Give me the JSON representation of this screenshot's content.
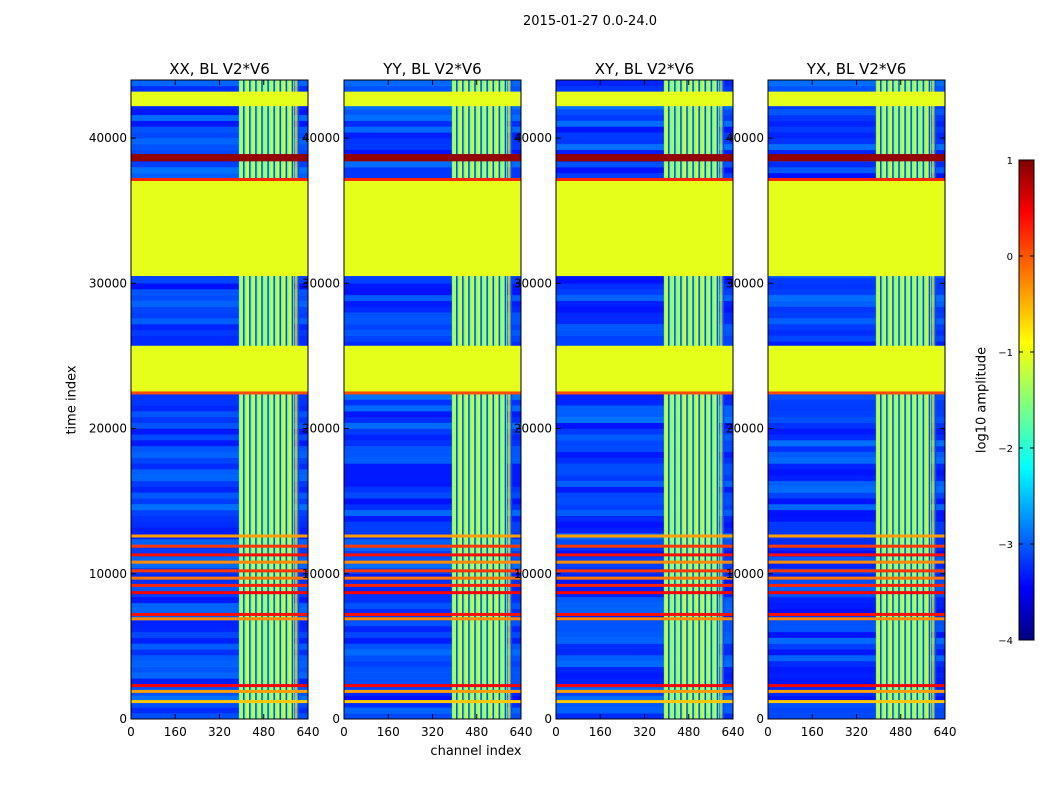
{
  "figure": {
    "suptitle": "2015-01-27 0.0-24.0",
    "ylabel": "time index",
    "xlabel": "channel index",
    "colorbar_label": "log10 amplitude"
  },
  "chart_data": {
    "type": "heatmap",
    "colormap": "jet",
    "clim": [
      -4,
      1
    ],
    "colorbar_ticks": [
      "1",
      "0",
      "−1",
      "−2",
      "−3",
      "−4"
    ],
    "colorbar_tick_values": [
      1,
      0,
      -1,
      -2,
      -3,
      -4
    ],
    "panels": [
      {
        "title": "XX, BL V2*V6"
      },
      {
        "title": "YY, BL V2*V6"
      },
      {
        "title": "XY, BL V2*V6"
      },
      {
        "title": "YX, BL V2*V6"
      }
    ],
    "x_range": [
      0,
      640
    ],
    "x_ticks": [
      0,
      160,
      320,
      480,
      640
    ],
    "y_range": [
      0,
      44000
    ],
    "y_ticks": [
      0,
      10000,
      20000,
      30000,
      40000
    ],
    "flagged_time_blocks": [
      {
        "t0": 42200,
        "t1": 43200,
        "log_amp": -1.0
      },
      {
        "t0": 30500,
        "t1": 37200,
        "log_amp": -1.0
      },
      {
        "t0": 22500,
        "t1": 25700,
        "log_amp": -1.0
      },
      {
        "t0": 38400,
        "t1": 38900,
        "log_amp": 0.9
      }
    ],
    "rfi_lines_time": [
      {
        "t": 37150,
        "log_amp": 0.2
      },
      {
        "t": 22450,
        "log_amp": 0.0
      },
      {
        "t": 12600,
        "log_amp": -0.4
      },
      {
        "t": 11900,
        "log_amp": 0.1
      },
      {
        "t": 11300,
        "log_amp": 0.3
      },
      {
        "t": 10800,
        "log_amp": -0.3
      },
      {
        "t": 10200,
        "log_amp": 0.1
      },
      {
        "t": 9700,
        "log_amp": -0.2
      },
      {
        "t": 9200,
        "log_amp": 0.2
      },
      {
        "t": 8700,
        "log_amp": 0.4
      },
      {
        "t": 7200,
        "log_amp": 0.3
      },
      {
        "t": 6900,
        "log_amp": -0.3
      },
      {
        "t": 2300,
        "log_amp": 0.4
      },
      {
        "t": 1900,
        "log_amp": -0.4
      },
      {
        "t": 1200,
        "log_amp": -0.6
      }
    ],
    "rfi_channel_band": {
      "c0": 390,
      "c1": 590,
      "log_amp": -1.6
    }
  }
}
